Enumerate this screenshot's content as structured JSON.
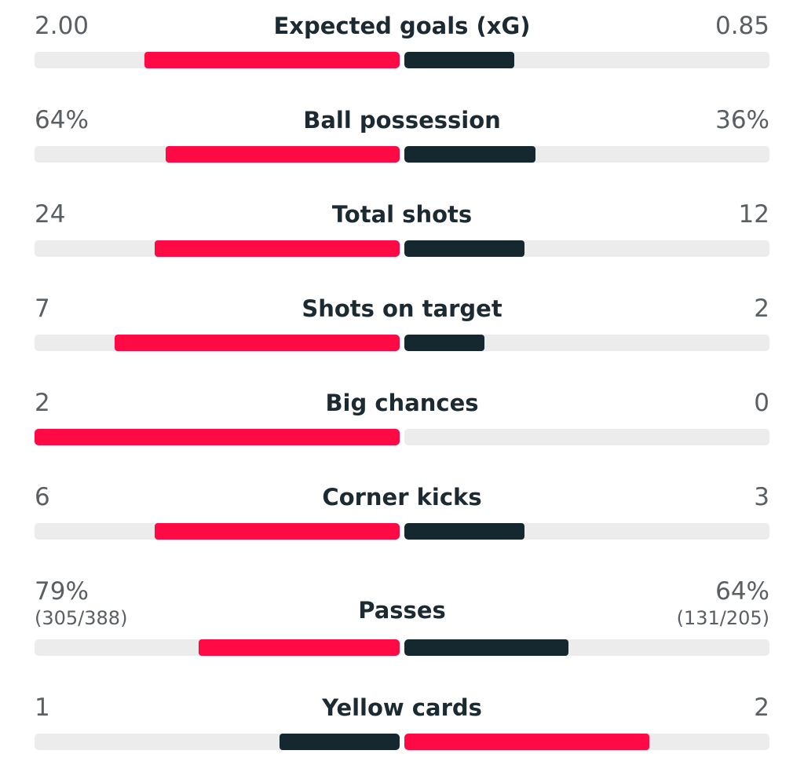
{
  "colors": {
    "home": "#ff0a45",
    "away": "#15272f",
    "track": "#ececec",
    "value_text": "#5a5f63",
    "label_text": "#1c2a32"
  },
  "stats": [
    {
      "label": "Expected goals (xG)",
      "home": "2.00",
      "away": "0.85",
      "home_share": 0.7,
      "away_share": 0.3,
      "home_color": "home",
      "away_color": "away"
    },
    {
      "label": "Ball possession",
      "home": "64%",
      "away": "36%",
      "home_share": 0.64,
      "away_share": 0.36,
      "home_color": "home",
      "away_color": "away"
    },
    {
      "label": "Total shots",
      "home": "24",
      "away": "12",
      "home_share": 0.67,
      "away_share": 0.33,
      "home_color": "home",
      "away_color": "away"
    },
    {
      "label": "Shots on target",
      "home": "7",
      "away": "2",
      "home_share": 0.78,
      "away_share": 0.22,
      "home_color": "home",
      "away_color": "away"
    },
    {
      "label": "Big chances",
      "home": "2",
      "away": "0",
      "home_share": 1.0,
      "away_share": 0.0,
      "home_color": "home",
      "away_color": "away"
    },
    {
      "label": "Corner kicks",
      "home": "6",
      "away": "3",
      "home_share": 0.67,
      "away_share": 0.33,
      "home_color": "home",
      "away_color": "away"
    },
    {
      "label": "Passes",
      "home": "79%",
      "away": "64%",
      "home_sub": "(305/388)",
      "away_sub": "(131/205)",
      "home_share": 0.55,
      "away_share": 0.45,
      "home_color": "home",
      "away_color": "away"
    },
    {
      "label": "Yellow cards",
      "home": "1",
      "away": "2",
      "home_share": 0.33,
      "away_share": 0.67,
      "home_color": "away",
      "away_color": "home"
    }
  ]
}
